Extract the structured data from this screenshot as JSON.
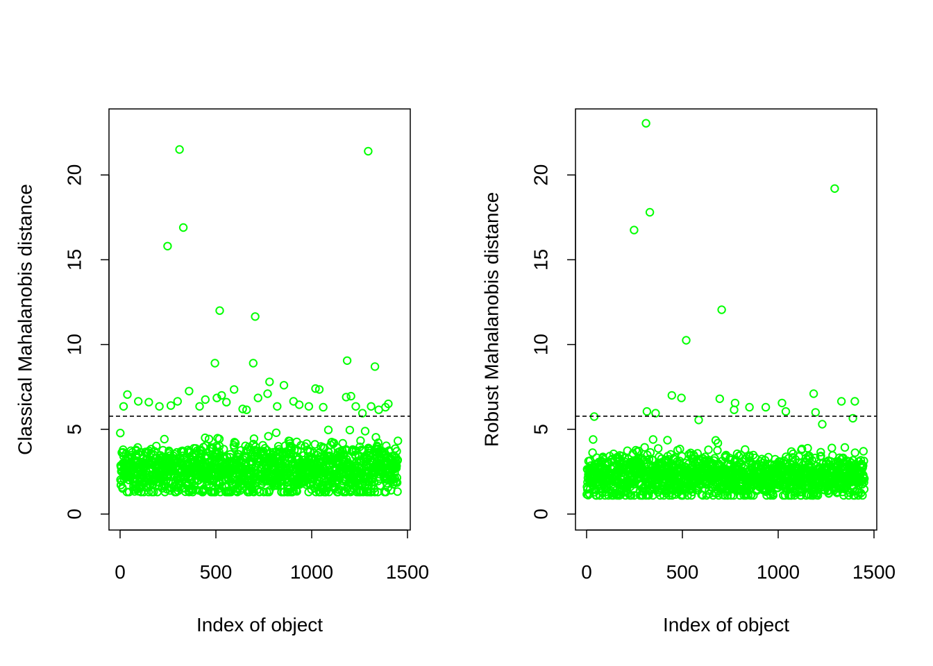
{
  "colors": {
    "point": "#00ff00",
    "axis": "#000000",
    "threshold": "#000000",
    "background": "#ffffff"
  },
  "chart_data": [
    {
      "type": "scatter",
      "panel": "left",
      "xlabel": "Index of object",
      "ylabel": "Classical Mahalanobis distance",
      "xlim": [
        0,
        1500
      ],
      "ylim": [
        0,
        23
      ],
      "xticks": [
        0,
        500,
        1000,
        1500
      ],
      "xtick_labels": [
        "0",
        "500",
        "1000",
        "1500"
      ],
      "yticks": [
        0,
        5,
        10,
        15,
        20
      ],
      "ytick_labels": [
        "0",
        "5",
        "10",
        "15",
        "20"
      ],
      "threshold": 5.77,
      "bulk": {
        "n": 1450,
        "typical_min": 1.3,
        "typical_center": 2.6,
        "typical_max": 4.6
      },
      "series": [
        {
          "name": "outliers",
          "points": [
            [
              310,
              21.5
            ],
            [
              1295,
              21.4
            ],
            [
              330,
              16.9
            ],
            [
              248,
              15.8
            ],
            [
              520,
              12.0
            ],
            [
              705,
              11.65
            ],
            [
              495,
              8.9
            ],
            [
              695,
              8.9
            ],
            [
              1185,
              9.05
            ],
            [
              1330,
              8.7
            ],
            [
              780,
              7.8
            ],
            [
              855,
              7.6
            ],
            [
              360,
              7.25
            ],
            [
              595,
              7.35
            ],
            [
              1020,
              7.4
            ],
            [
              1040,
              7.35
            ],
            [
              38,
              7.05
            ],
            [
              205,
              6.35
            ],
            [
              265,
              6.4
            ],
            [
              445,
              6.75
            ],
            [
              505,
              6.85
            ],
            [
              530,
              7.0
            ],
            [
              640,
              6.2
            ],
            [
              660,
              6.15
            ],
            [
              720,
              6.85
            ],
            [
              770,
              7.1
            ],
            [
              905,
              6.65
            ],
            [
              935,
              6.45
            ],
            [
              1060,
              6.3
            ],
            [
              1205,
              6.95
            ],
            [
              1230,
              6.35
            ],
            [
              1310,
              6.35
            ],
            [
              1385,
              6.3
            ],
            [
              1400,
              6.5
            ],
            [
              95,
              6.65
            ],
            [
              150,
              6.6
            ],
            [
              18,
              6.35
            ],
            [
              1180,
              6.9
            ],
            [
              985,
              6.35
            ],
            [
              820,
              6.35
            ],
            [
              555,
              6.6
            ],
            [
              415,
              6.35
            ],
            [
              300,
              6.65
            ],
            [
              1265,
              5.95
            ],
            [
              1350,
              6.15
            ]
          ]
        }
      ]
    },
    {
      "type": "scatter",
      "panel": "right",
      "xlabel": "Index of object",
      "ylabel": "Robust Mahalanobis distance",
      "xlim": [
        0,
        1500
      ],
      "ylim": [
        0,
        23
      ],
      "xticks": [
        0,
        500,
        1000,
        1500
      ],
      "xtick_labels": [
        "0",
        "500",
        "1000",
        "1500"
      ],
      "yticks": [
        0,
        5,
        10,
        15,
        20
      ],
      "ytick_labels": [
        "0",
        "5",
        "10",
        "15",
        "20"
      ],
      "threshold": 5.77,
      "bulk": {
        "n": 1450,
        "typical_min": 1.1,
        "typical_center": 2.2,
        "typical_max": 4.0
      },
      "series": [
        {
          "name": "outliers",
          "points": [
            [
              310,
              23.05
            ],
            [
              1295,
              19.2
            ],
            [
              330,
              17.8
            ],
            [
              248,
              16.75
            ],
            [
              705,
              12.05
            ],
            [
              520,
              10.25
            ],
            [
              445,
              7.0
            ],
            [
              495,
              6.85
            ],
            [
              695,
              6.8
            ],
            [
              775,
              6.55
            ],
            [
              1020,
              6.55
            ],
            [
              1185,
              7.1
            ],
            [
              1330,
              6.65
            ],
            [
              1400,
              6.65
            ],
            [
              315,
              6.05
            ],
            [
              360,
              5.95
            ],
            [
              850,
              6.3
            ],
            [
              935,
              6.3
            ],
            [
              1040,
              6.05
            ],
            [
              40,
              5.75
            ],
            [
              770,
              6.15
            ],
            [
              1390,
              5.65
            ],
            [
              1195,
              6.0
            ],
            [
              585,
              5.55
            ],
            [
              1230,
              5.3
            ]
          ]
        }
      ]
    }
  ]
}
